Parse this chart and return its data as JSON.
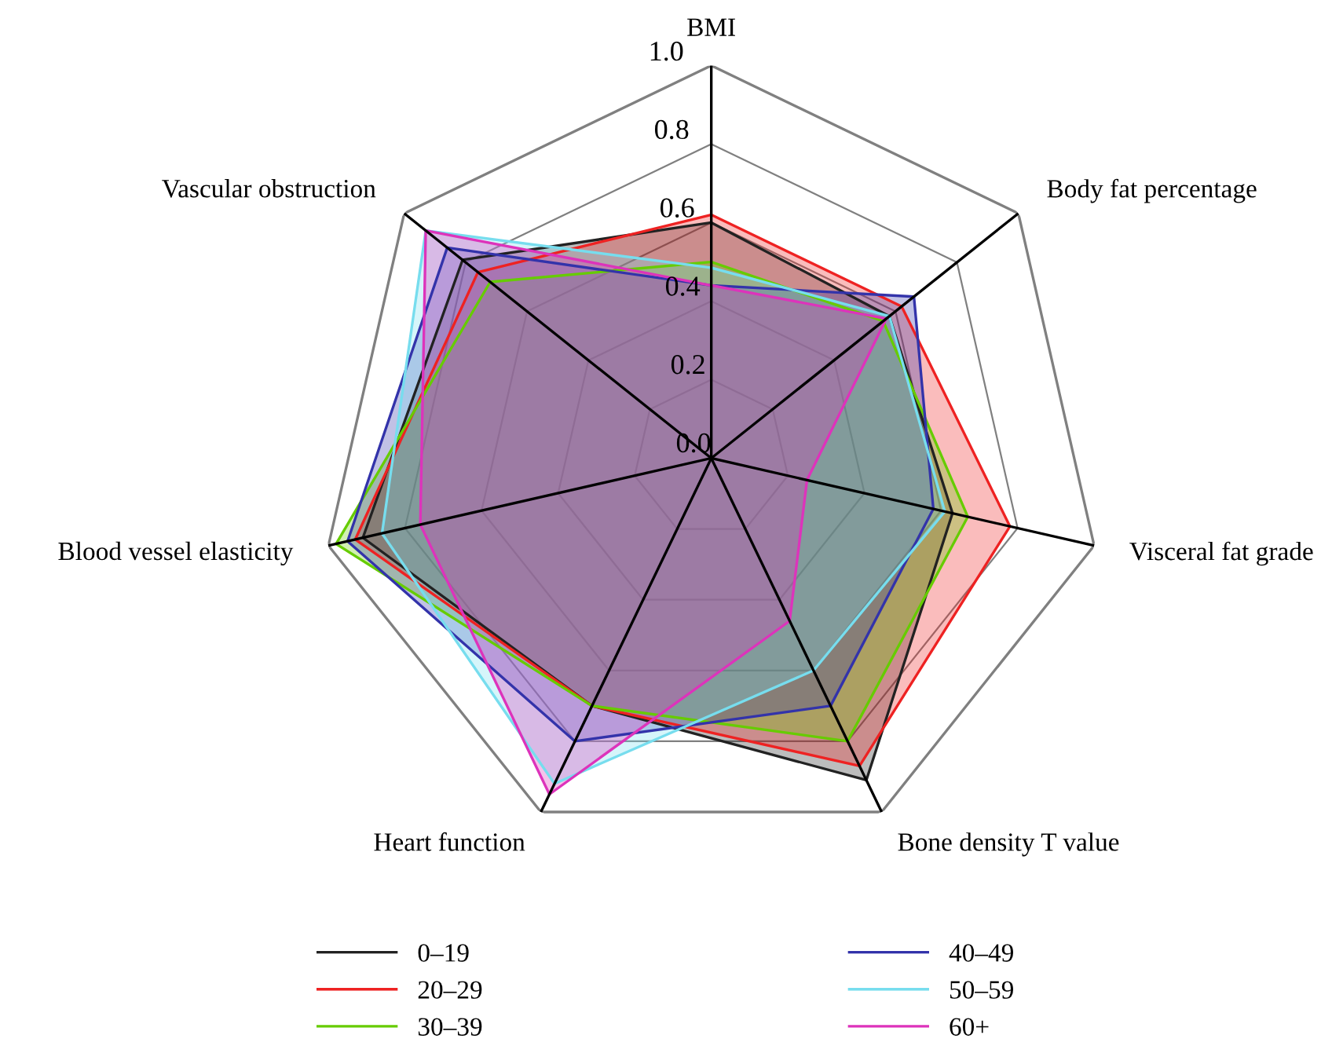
{
  "chart_data": {
    "type": "radar",
    "categories": [
      "BMI",
      "Body fat percentage",
      "Visceral fat grade",
      "Bone density T value",
      "Heart function",
      "Blood vessel elasticity",
      "Vascular obstruction"
    ],
    "ylim": [
      0,
      1.0
    ],
    "yticks": [
      {
        "value": 0,
        "label": "0.0"
      },
      0.2,
      0.4,
      0.6,
      0.8,
      {
        "value": 1,
        "label": "1.0"
      }
    ],
    "grid": true,
    "legend": "bottom",
    "series": [
      {
        "name": "0–19",
        "color": "#222222",
        "values": [
          0.6,
          0.58,
          0.63,
          0.91,
          0.7,
          0.91,
          0.81
        ]
      },
      {
        "name": "20–29",
        "color": "#ee2222",
        "values": [
          0.62,
          0.62,
          0.78,
          0.87,
          0.7,
          0.93,
          0.76
        ]
      },
      {
        "name": "30–39",
        "color": "#66cc00",
        "values": [
          0.5,
          0.56,
          0.67,
          0.8,
          0.7,
          0.98,
          0.72
        ]
      },
      {
        "name": "40–49",
        "color": "#3333aa",
        "values": [
          0.44,
          0.66,
          0.58,
          0.7,
          0.8,
          0.95,
          0.86
        ]
      },
      {
        "name": "50–59",
        "color": "#77ddee",
        "values": [
          0.485,
          0.58,
          0.61,
          0.6,
          0.92,
          0.86,
          0.93
        ]
      },
      {
        "name": "60+",
        "color": "#dd33bb",
        "values": [
          0.44,
          0.57,
          0.25,
          0.46,
          0.95,
          0.76,
          0.93
        ]
      }
    ]
  }
}
